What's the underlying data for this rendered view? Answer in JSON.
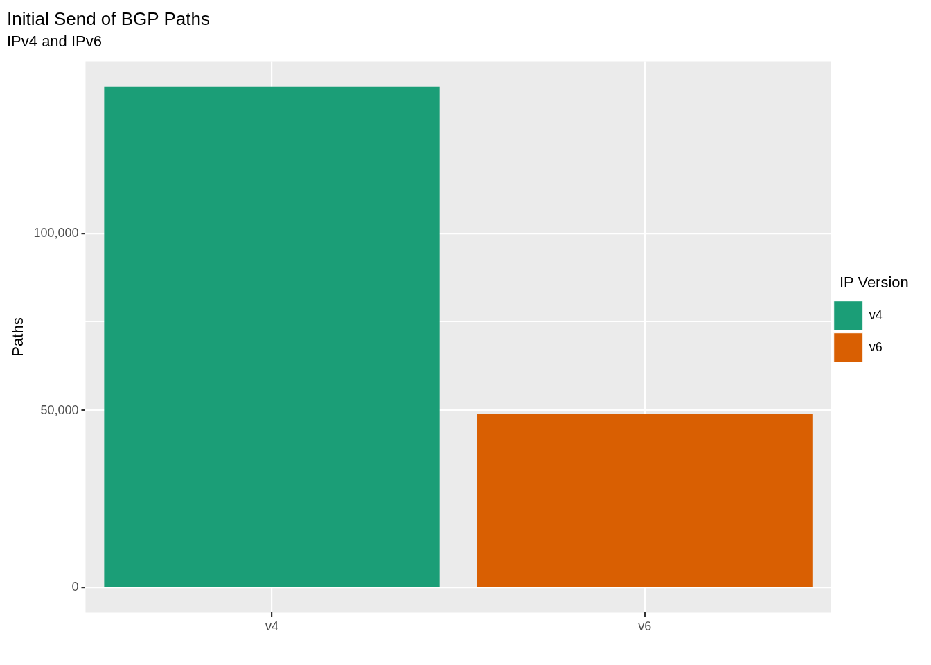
{
  "chart_data": {
    "type": "bar",
    "title": "Initial Send of BGP Paths",
    "subtitle": "IPv4 and IPv6",
    "ylabel": "Paths",
    "legend_title": "IP Version",
    "categories": [
      "v4",
      "v6"
    ],
    "series": [
      {
        "name": "v4",
        "color": "#1b9e77",
        "values": [
          141500,
          null
        ]
      },
      {
        "name": "v6",
        "color": "#d95f02",
        "values": [
          null,
          49000
        ]
      }
    ],
    "ylim": [
      -7075,
      148575
    ],
    "yticks": [
      {
        "value": 0,
        "label": "0"
      },
      {
        "value": 25000,
        "label": null
      },
      {
        "value": 50000,
        "label": "50,000"
      },
      {
        "value": 75000,
        "label": null
      },
      {
        "value": 100000,
        "label": "100,000"
      },
      {
        "value": 125000,
        "label": null
      }
    ],
    "grid": true,
    "legend": "right"
  }
}
